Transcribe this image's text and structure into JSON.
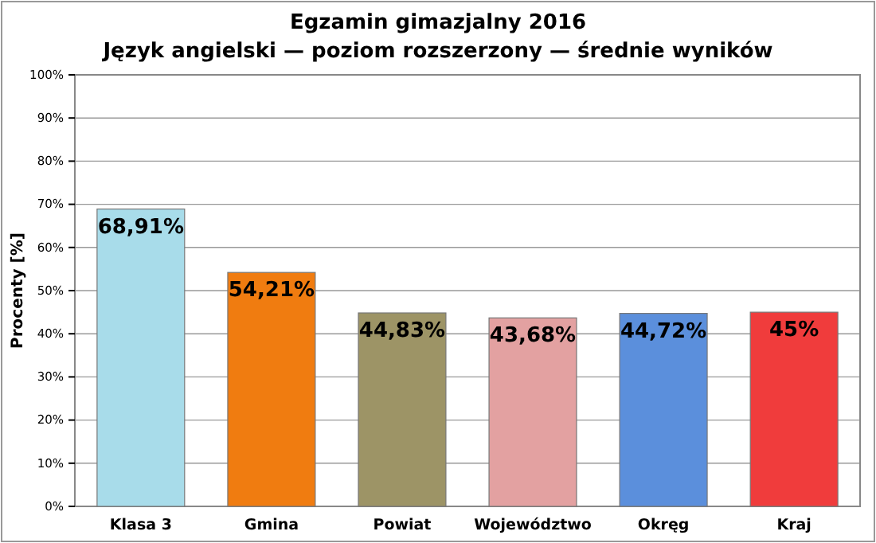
{
  "chart_data": {
    "type": "bar",
    "title": "Egzamin gimazjalny 2016",
    "subtitle": "Język angielski — poziom rozszerzony — średnie wyników",
    "ylabel": "Procenty [%]",
    "categories": [
      "Klasa 3",
      "Gmina",
      "Powiat",
      "Województwo",
      "Okręg",
      "Kraj"
    ],
    "values": [
      68.91,
      54.21,
      44.83,
      43.68,
      44.72,
      45
    ],
    "colors": [
      "#a8dcea",
      "#f07c10",
      "#9d9466",
      "#e3a1a1",
      "#5b8fdc",
      "#f03c3c"
    ],
    "value_labels": [
      "68,91%",
      "54,21%",
      "44,83%",
      "43,68%",
      "44,72%",
      "45%"
    ],
    "ylim": [
      0,
      100
    ],
    "yticks": [
      {
        "value": 0,
        "label": "0%"
      },
      {
        "value": 10,
        "label": "10%"
      },
      {
        "value": 20,
        "label": "20%"
      },
      {
        "value": 30,
        "label": "30%"
      },
      {
        "value": 40,
        "label": "40%"
      },
      {
        "value": 50,
        "label": "50%"
      },
      {
        "value": 60,
        "label": "60%"
      },
      {
        "value": 70,
        "label": "70%"
      },
      {
        "value": 80,
        "label": "80%"
      },
      {
        "value": 90,
        "label": "90%"
      },
      {
        "value": 100,
        "label": "100%"
      }
    ],
    "grid": "y"
  }
}
